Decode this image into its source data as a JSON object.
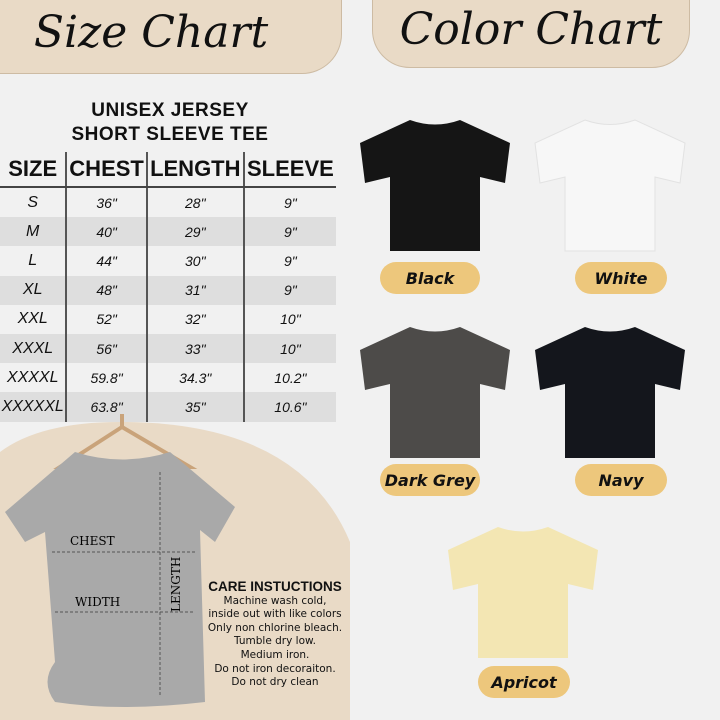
{
  "size_chart": {
    "heading": "Size Chart",
    "title_line1": "UNISEX JERSEY",
    "title_line2": "SHORT SLEEVE TEE",
    "columns": [
      "SIZE",
      "CHEST",
      "LENGTH",
      "SLEEVE"
    ],
    "rows": [
      [
        "S",
        "36\"",
        "28\"",
        "9\""
      ],
      [
        "M",
        "40\"",
        "29\"",
        "9\""
      ],
      [
        "L",
        "44\"",
        "30\"",
        "9\""
      ],
      [
        "XL",
        "48\"",
        "31\"",
        "9\""
      ],
      [
        "XXL",
        "52\"",
        "32\"",
        "10\""
      ],
      [
        "XXXL",
        "56\"",
        "33\"",
        "10\""
      ],
      [
        "XXXXL",
        "59.8\"",
        "34.3\"",
        "10.2\""
      ],
      [
        "XXXXXL",
        "63.8\"",
        "35\"",
        "10.6\""
      ]
    ]
  },
  "diagram": {
    "chest": "CHEST",
    "width": "WIDTH",
    "length": "LENGTH"
  },
  "care": {
    "title": "CARE INSTUCTIONS",
    "lines": [
      "Machine wash cold,",
      "inside out with like colors",
      "Only non chlorine bleach.",
      "Tumble dry low.",
      "Medium iron.",
      "Do not iron decoraiton.",
      "Do not dry clean"
    ]
  },
  "color_chart": {
    "heading": "Color Chart",
    "colors": [
      {
        "name": "Black",
        "hex": "#151515"
      },
      {
        "name": "White",
        "hex": "#f7f7f7"
      },
      {
        "name": "Dark Grey",
        "hex": "#4d4b49"
      },
      {
        "name": "Navy",
        "hex": "#14161c"
      },
      {
        "name": "Apricot",
        "hex": "#f3e6b3"
      }
    ],
    "label_color": "#edc77c"
  }
}
